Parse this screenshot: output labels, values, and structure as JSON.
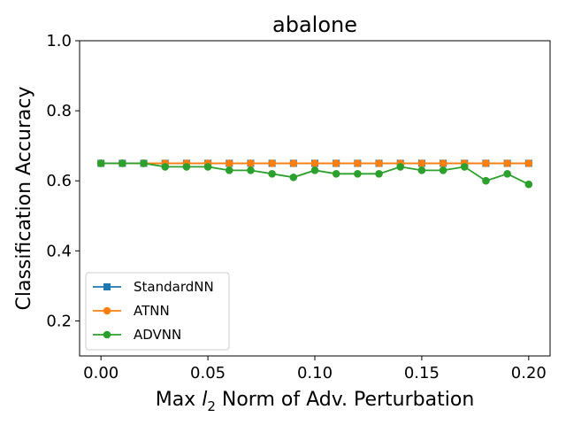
{
  "chart_data": {
    "type": "line",
    "title": "abalone",
    "xlabel_parts": [
      "Max ",
      "l",
      "2",
      " Norm of Adv. Perturbation"
    ],
    "ylabel": "Classification Accuracy",
    "xlim": [
      -0.01,
      0.21
    ],
    "ylim": [
      0.1,
      1.0
    ],
    "xticks": [
      0.0,
      0.05,
      0.1,
      0.15,
      0.2
    ],
    "xtick_labels": [
      "0.00",
      "0.05",
      "0.10",
      "0.15",
      "0.20"
    ],
    "yticks": [
      0.2,
      0.4,
      0.6,
      0.8,
      1.0
    ],
    "ytick_labels": [
      "0.2",
      "0.4",
      "0.6",
      "0.8",
      "1.0"
    ],
    "grid": false,
    "legend_position": "lower-left",
    "x": [
      0.0,
      0.01,
      0.02,
      0.03,
      0.04,
      0.05,
      0.06,
      0.07,
      0.08,
      0.09,
      0.1,
      0.11,
      0.12,
      0.13,
      0.14,
      0.15,
      0.16,
      0.17,
      0.18,
      0.19,
      0.2
    ],
    "series": [
      {
        "name": "StandardNN",
        "color": "#1f77b4",
        "marker": "square",
        "values": [
          0.65,
          0.65,
          0.65,
          0.65,
          0.65,
          0.65,
          0.65,
          0.65,
          0.65,
          0.65,
          0.65,
          0.65,
          0.65,
          0.65,
          0.65,
          0.65,
          0.65,
          0.65,
          0.65,
          0.65,
          0.65
        ]
      },
      {
        "name": "ATNN",
        "color": "#ff7f0e",
        "marker": "circle",
        "values": [
          0.65,
          0.65,
          0.65,
          0.65,
          0.65,
          0.65,
          0.65,
          0.65,
          0.65,
          0.65,
          0.65,
          0.65,
          0.65,
          0.65,
          0.65,
          0.65,
          0.65,
          0.65,
          0.65,
          0.65,
          0.65
        ]
      },
      {
        "name": "ADVNN",
        "color": "#2ca02c",
        "marker": "circle",
        "values": [
          0.65,
          0.65,
          0.65,
          0.64,
          0.64,
          0.64,
          0.63,
          0.63,
          0.62,
          0.61,
          0.63,
          0.62,
          0.62,
          0.62,
          0.64,
          0.63,
          0.63,
          0.64,
          0.6,
          0.62,
          0.59
        ]
      }
    ]
  }
}
